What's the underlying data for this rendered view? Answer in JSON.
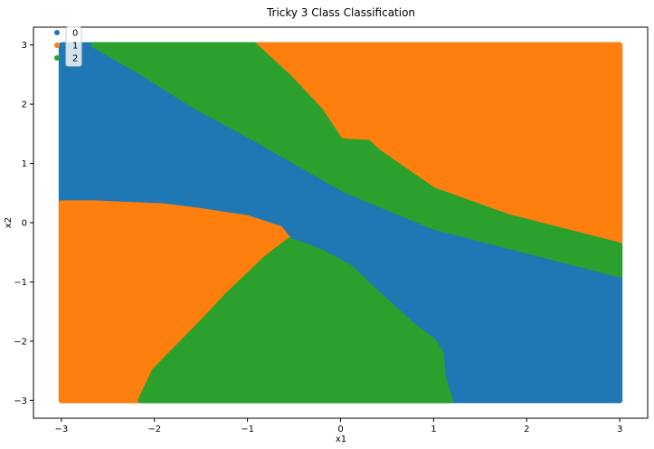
{
  "chart_data": {
    "type": "scatter",
    "title": "Tricky 3 Class Classification",
    "xlabel": "x1",
    "ylabel": "x2",
    "xlim": [
      -3.3,
      3.3
    ],
    "ylim": [
      -3.3,
      3.3
    ],
    "xticks": [
      -3,
      -2,
      -1,
      0,
      1,
      2,
      3
    ],
    "yticks": [
      -3,
      -2,
      -1,
      0,
      1,
      2,
      3
    ],
    "xtick_labels": [
      "−3",
      "−2",
      "−1",
      "0",
      "1",
      "2",
      "3"
    ],
    "ytick_labels": [
      "−3",
      "−2",
      "−1",
      "0",
      "1",
      "2",
      "3"
    ],
    "grid": false,
    "legend": {
      "placement": "top-left"
    },
    "series": [
      {
        "name": "0",
        "color": "#1f77b4"
      },
      {
        "name": "1",
        "color": "#ff7f0e"
      },
      {
        "name": "2",
        "color": "#2ca02c"
      }
    ],
    "regions": [
      {
        "series": "1",
        "polygon": [
          [
            -0.93,
            3.0
          ],
          [
            3.0,
            3.0
          ],
          [
            3.0,
            -0.38
          ],
          [
            1.8,
            0.1
          ],
          [
            1.0,
            0.55
          ],
          [
            0.4,
            1.2
          ],
          [
            0.3,
            1.35
          ],
          [
            0.0,
            1.38
          ],
          [
            -0.22,
            1.9
          ],
          [
            -0.55,
            2.45
          ]
        ]
      },
      {
        "series": "2",
        "polygon": [
          [
            -2.65,
            3.0
          ],
          [
            -0.93,
            3.0
          ],
          [
            -0.55,
            2.45
          ],
          [
            -0.22,
            1.9
          ],
          [
            0.0,
            1.38
          ],
          [
            0.3,
            1.35
          ],
          [
            0.4,
            1.2
          ],
          [
            1.0,
            0.55
          ],
          [
            1.8,
            0.1
          ],
          [
            3.0,
            -0.38
          ],
          [
            3.0,
            -0.88
          ],
          [
            1.0,
            -0.07
          ],
          [
            0.05,
            0.55
          ],
          [
            -0.9,
            1.4
          ],
          [
            -1.6,
            2.0
          ],
          [
            -2.1,
            2.5
          ]
        ]
      },
      {
        "series": "1",
        "polygon": [
          [
            -3.0,
            0.33
          ],
          [
            -2.65,
            0.33
          ],
          [
            -1.9,
            0.28
          ],
          [
            -1.5,
            0.2
          ],
          [
            -1.0,
            0.08
          ],
          [
            -0.65,
            -0.1
          ],
          [
            -0.55,
            -0.3
          ],
          [
            -0.8,
            -0.6
          ],
          [
            -1.2,
            -1.2
          ],
          [
            -1.5,
            -1.7
          ],
          [
            -2.0,
            -2.5
          ],
          [
            -2.15,
            -3.0
          ],
          [
            -3.0,
            -3.0
          ]
        ]
      },
      {
        "series": "2",
        "polygon": [
          [
            -0.55,
            -0.3
          ],
          [
            -0.4,
            -0.38
          ],
          [
            -0.2,
            -0.5
          ],
          [
            0.1,
            -0.75
          ],
          [
            0.4,
            -1.2
          ],
          [
            0.75,
            -1.7
          ],
          [
            1.0,
            -2.0
          ],
          [
            1.08,
            -2.2
          ],
          [
            1.1,
            -2.6
          ],
          [
            1.18,
            -3.0
          ],
          [
            -2.15,
            -3.0
          ],
          [
            -2.0,
            -2.5
          ],
          [
            -1.5,
            -1.7
          ],
          [
            -1.2,
            -1.2
          ],
          [
            -0.8,
            -0.6
          ]
        ]
      }
    ]
  }
}
